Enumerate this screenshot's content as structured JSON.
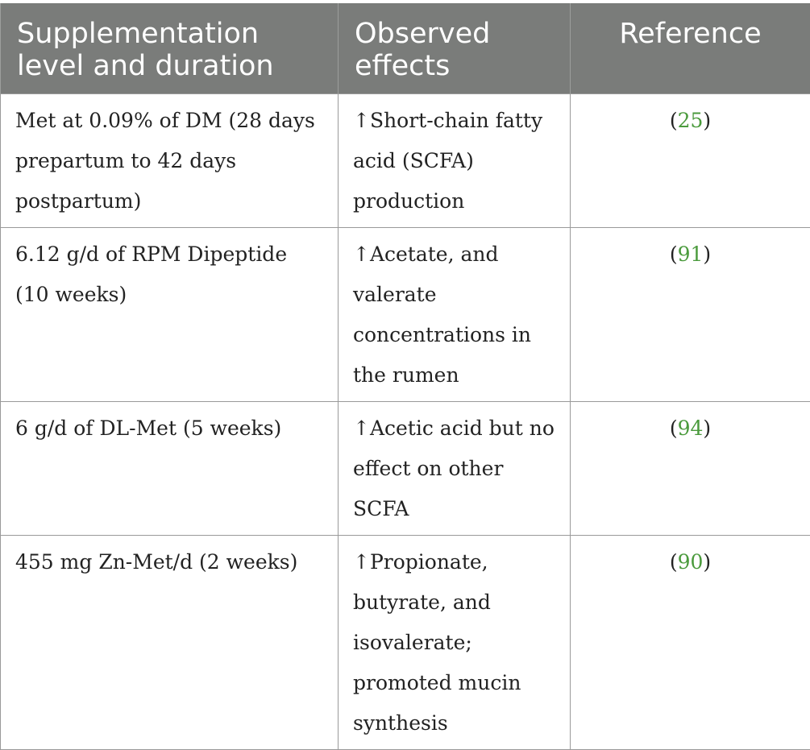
{
  "table": {
    "headers": {
      "col1": "Supplementation level and duration",
      "col2": "Observed effects",
      "col3": "Reference"
    },
    "rows": [
      {
        "supplementation": "Met at 0.09% of DM (28 days prepartum to 42 days postpartum)",
        "effects": "↑Short-chain fatty acid (SCFA) production",
        "reference": "25"
      },
      {
        "supplementation": "6.12 g/d of RPM Dipeptide (10 weeks)",
        "effects": "↑Acetate, and valerate concentrations in the rumen",
        "reference": "91"
      },
      {
        "supplementation": "6 g/d of DL-Met (5 weeks)",
        "effects": "↑Acetic acid but no effect on other SCFA",
        "reference": "94"
      },
      {
        "supplementation": "455 mg Zn-Met/d (2 weeks)",
        "effects": "↑Propionate, butyrate, and isovalerate; promoted mucin synthesis",
        "reference": "90"
      }
    ],
    "colors": {
      "header_bg": "#7a7c7a",
      "header_text": "#ffffff",
      "reference_link": "#4a9a3c"
    }
  }
}
